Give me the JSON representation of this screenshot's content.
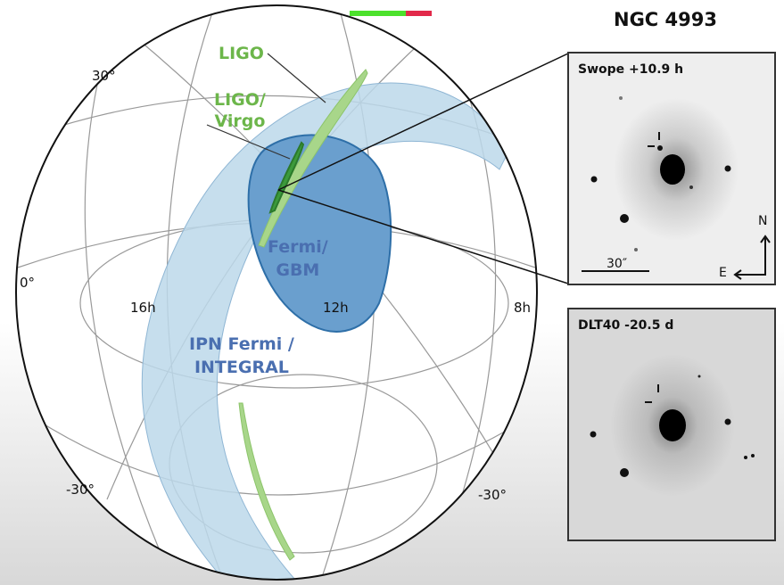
{
  "title": "NGC 4993",
  "labels": {
    "dec_30": "30°",
    "dec_0": "0°",
    "ra_16": "16h",
    "ra_12": "12h",
    "ra_8": "8h",
    "dec_m30_left": "-30°",
    "dec_m30_right": "-30°"
  },
  "regions": {
    "ligo": "LIGO",
    "ligo_virgo": [
      "LIGO/",
      "Virgo"
    ],
    "fermi": [
      "Fermi/",
      "GBM"
    ],
    "ipn": [
      "IPN Fermi /",
      "INTEGRAL"
    ]
  },
  "insets": [
    {
      "caption": "Swope +10.9 h",
      "scale": "30″",
      "north": "N",
      "east": "E"
    },
    {
      "caption": "DLT40 -20.5 d"
    }
  ],
  "colors": {
    "ipn_band": "#bcd8ea",
    "fermi": "#6a9fce",
    "ligo": "#a8d68a",
    "ligo_virgo": "#3c9a3c"
  }
}
